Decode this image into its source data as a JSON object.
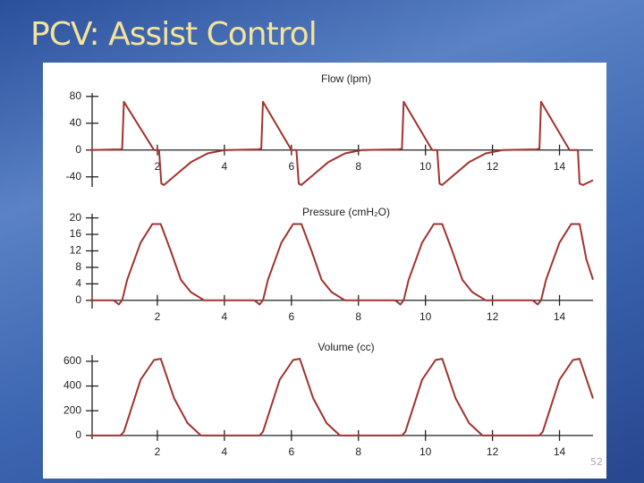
{
  "slide_title": "PCV: Assist Control",
  "page_number": "52",
  "chart_data": [
    {
      "type": "line",
      "title": "Flow (lpm)",
      "color": "#a2322f",
      "x": [
        0,
        0.9,
        0.95,
        1.0,
        1.9,
        2.05,
        2.12,
        2.2,
        2.6,
        3.0,
        3.5,
        4.0,
        5.0,
        5.1,
        5.15,
        6.0,
        6.15,
        6.22,
        6.3,
        6.7,
        7.1,
        7.6,
        8.1,
        9.2,
        9.3,
        9.35,
        10.2,
        10.35,
        10.42,
        10.5,
        10.9,
        11.3,
        11.8,
        12.3,
        13.3,
        13.4,
        13.45,
        14.3,
        14.55,
        14.6,
        14.7,
        15
      ],
      "values": [
        0,
        1,
        2,
        72,
        0,
        0,
        -50,
        -52,
        -35,
        -18,
        -5,
        0,
        1,
        2,
        72,
        0,
        0,
        -50,
        -52,
        -35,
        -18,
        -5,
        0,
        1,
        2,
        72,
        0,
        0,
        -50,
        -52,
        -35,
        -18,
        -5,
        0,
        1,
        2,
        72,
        0,
        0,
        -50,
        -52,
        -45
      ],
      "xlim": [
        0,
        15
      ],
      "xticks": [
        2,
        4,
        6,
        8,
        10,
        12,
        14
      ],
      "ylim": [
        -55,
        85
      ],
      "yticks": [
        -40,
        0,
        40,
        80
      ]
    },
    {
      "type": "line",
      "title": "Pressure (cmH₂O)",
      "color": "#a2322f",
      "x": [
        0,
        0.7,
        0.85,
        0.95,
        1.1,
        1.5,
        1.85,
        2.1,
        2.4,
        2.7,
        3.0,
        3.4,
        4.0,
        4.9,
        5.05,
        5.15,
        5.3,
        5.7,
        6.05,
        6.3,
        6.6,
        6.9,
        7.2,
        7.6,
        8.2,
        9.1,
        9.25,
        9.35,
        9.5,
        9.9,
        10.25,
        10.5,
        10.8,
        11.1,
        11.4,
        11.8,
        12.4,
        13.2,
        13.35,
        13.45,
        13.6,
        14.0,
        14.35,
        14.6,
        14.8,
        15.0
      ],
      "values": [
        0,
        0,
        -1,
        0,
        5,
        14,
        18.5,
        18.5,
        12,
        5,
        2,
        0,
        0,
        0,
        -1,
        0,
        5,
        14,
        18.5,
        18.5,
        12,
        5,
        2,
        0,
        0,
        0,
        -1,
        0,
        5,
        14,
        18.5,
        18.5,
        12,
        5,
        2,
        0,
        0,
        0,
        -1,
        0,
        5,
        14,
        18.5,
        18.5,
        10,
        5
      ],
      "xlim": [
        0,
        15
      ],
      "xticks": [
        2,
        4,
        6,
        8,
        10,
        12,
        14
      ],
      "ylim": [
        -2,
        21
      ],
      "yticks": [
        0,
        4,
        8,
        12,
        16,
        20
      ]
    },
    {
      "type": "line",
      "title": "Volume (cc)",
      "color": "#a2322f",
      "x": [
        0,
        0.9,
        1.0,
        1.5,
        1.9,
        2.1,
        2.5,
        2.9,
        3.3,
        4.0,
        5.05,
        5.15,
        5.65,
        6.05,
        6.25,
        6.65,
        7.05,
        7.45,
        8.2,
        9.3,
        9.4,
        9.9,
        10.3,
        10.5,
        10.9,
        11.3,
        11.7,
        12.4,
        13.4,
        13.5,
        14.0,
        14.4,
        14.6,
        15.0
      ],
      "values": [
        0,
        0,
        30,
        450,
        610,
        620,
        300,
        100,
        0,
        0,
        0,
        30,
        450,
        610,
        620,
        300,
        100,
        0,
        0,
        0,
        30,
        450,
        610,
        620,
        300,
        100,
        0,
        0,
        0,
        30,
        450,
        610,
        620,
        300
      ],
      "xlim": [
        0,
        15
      ],
      "xticks": [
        2,
        4,
        6,
        8,
        10,
        12,
        14
      ],
      "ylim": [
        -30,
        650
      ],
      "yticks": [
        0,
        200,
        400,
        600
      ]
    }
  ]
}
